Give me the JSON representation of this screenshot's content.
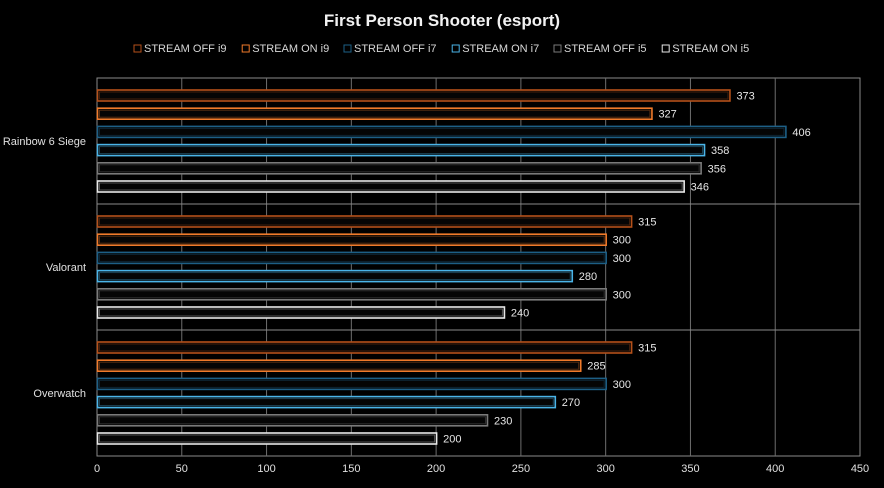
{
  "chart_data": {
    "type": "bar",
    "orientation": "horizontal",
    "title": "First Person Shooter (esport)",
    "categories": [
      "Rainbow 6 Siege",
      "Valorant",
      "Overwatch"
    ],
    "series": [
      {
        "name": "STREAM OFF i9",
        "color": "#b5501a",
        "values": [
          373,
          315,
          315
        ]
      },
      {
        "name": "STREAM ON i9",
        "color": "#f07a2a",
        "values": [
          327,
          300,
          285
        ]
      },
      {
        "name": "STREAM OFF i7",
        "color": "#1d5f86",
        "values": [
          406,
          300,
          300
        ]
      },
      {
        "name": "STREAM ON i7",
        "color": "#4ab4e8",
        "values": [
          358,
          280,
          270
        ]
      },
      {
        "name": "STREAM OFF i5",
        "color": "#7a7a7a",
        "values": [
          356,
          300,
          230
        ]
      },
      {
        "name": "STREAM ON i5",
        "color": "#e8e8e8",
        "values": [
          346,
          240,
          200
        ]
      }
    ],
    "xlim": [
      0,
      450
    ],
    "xticks": [
      0,
      50,
      100,
      150,
      200,
      250,
      300,
      350,
      400,
      450
    ],
    "grid": true,
    "legend": "top-center",
    "xlabel": "",
    "ylabel": ""
  }
}
